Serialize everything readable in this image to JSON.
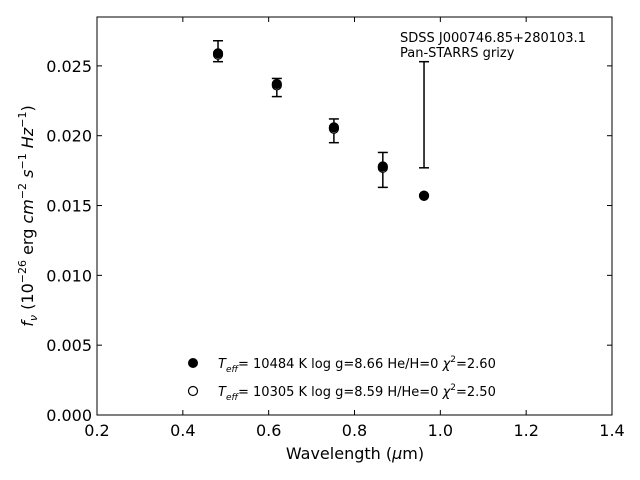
{
  "chart_data": {
    "type": "scatter",
    "xlabel": "Wavelength (μm)",
    "ylabel": "f_ν (10^-26 erg cm^-2 s^-1 Hz^-1)",
    "xlim": [
      0.2,
      1.4
    ],
    "ylim": [
      0.0,
      0.0285
    ],
    "x_ticks": [
      "0.2",
      "0.4",
      "0.6",
      "0.8",
      "1.0",
      "1.2",
      "1.4"
    ],
    "y_ticks": [
      "0.000",
      "0.005",
      "0.010",
      "0.015",
      "0.020",
      "0.025"
    ],
    "grid": false,
    "annotation": [
      "SDSS J000746.85+280103.1",
      "Pan-STARRS grizy"
    ],
    "observed": {
      "x": [
        0.482,
        0.619,
        0.752,
        0.866,
        0.962
      ],
      "y": [
        0.026,
        0.0235,
        0.0204,
        0.0176,
        0.0215
      ],
      "yerr_low": [
        0.0007,
        0.0007,
        0.0009,
        0.0013,
        0.0038
      ],
      "yerr_high": [
        0.0008,
        0.0006,
        0.0008,
        0.0012,
        0.0038
      ]
    },
    "series": [
      {
        "marker": "filled",
        "x": [
          0.482,
          0.619,
          0.752,
          0.866,
          0.962
        ],
        "y": [
          0.0259,
          0.0237,
          0.0206,
          0.0178,
          0.0157
        ],
        "label": {
          "teff": "T_eff= 10484 K",
          "rest": "log g=8.66  He/H=0",
          "chi": "χ²=2.60"
        }
      },
      {
        "marker": "open",
        "x": [
          0.482,
          0.619,
          0.752,
          0.866,
          0.962
        ],
        "y": [
          0.0258,
          0.0236,
          0.0205,
          0.0177,
          0.0157
        ],
        "label": {
          "teff": "T_eff= 10305 K",
          "rest": "log g=8.59  H/He=0",
          "chi": "χ²=2.50"
        }
      }
    ],
    "legend_position": "bottom-center"
  }
}
